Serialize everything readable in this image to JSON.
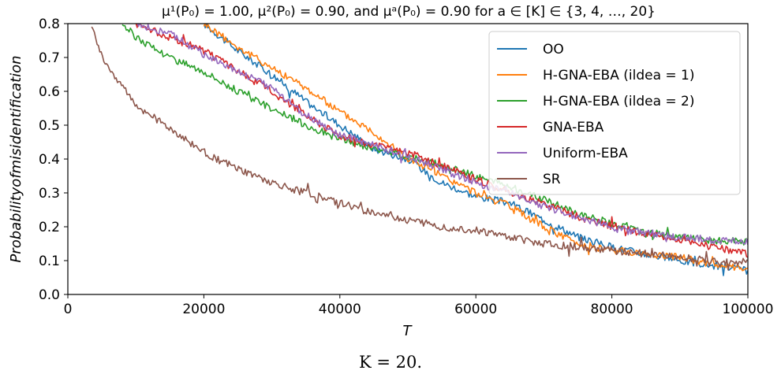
{
  "chart_data": {
    "type": "line",
    "title": "μ¹(P₀) = 1.00, μ²(P₀) = 0.90, and μᵃ(P₀) = 0.90 for a ∈ [K] ∈ {3, 4, …, 20}",
    "xlabel": "T",
    "ylabel": "Probabilityofmisidentification",
    "xlim": [
      0,
      100000
    ],
    "ylim": [
      0,
      0.8
    ],
    "xticks": [
      0,
      20000,
      40000,
      60000,
      80000,
      100000
    ],
    "yticks": [
      0.0,
      0.1,
      0.2,
      0.3,
      0.4,
      0.5,
      0.6,
      0.7,
      0.8
    ],
    "grid": false,
    "legend_position": "top-right",
    "series": [
      {
        "name": "OO",
        "color": "#1f77b4",
        "x": [
          20000,
          25000,
          30000,
          35000,
          40000,
          45000,
          50000,
          55000,
          60000,
          65000,
          70000,
          75000,
          80000,
          85000,
          90000,
          95000,
          100000
        ],
        "y": [
          0.8,
          0.72,
          0.65,
          0.57,
          0.5,
          0.43,
          0.4,
          0.33,
          0.29,
          0.27,
          0.22,
          0.17,
          0.14,
          0.12,
          0.1,
          0.085,
          0.07
        ]
      },
      {
        "name": "H-GNA-EBA (ildea = 1)",
        "color": "#ff7f0e",
        "x": [
          20000,
          25000,
          30000,
          35000,
          40000,
          45000,
          50000,
          55000,
          60000,
          65000,
          70000,
          75000,
          80000,
          85000,
          90000,
          95000,
          100000
        ],
        "y": [
          0.8,
          0.73,
          0.67,
          0.61,
          0.54,
          0.48,
          0.4,
          0.35,
          0.3,
          0.26,
          0.2,
          0.15,
          0.13,
          0.12,
          0.11,
          0.09,
          0.07
        ]
      },
      {
        "name": "H-GNA-EBA (ildea = 2)",
        "color": "#2ca02c",
        "x": [
          8000,
          10000,
          15000,
          20000,
          25000,
          30000,
          35000,
          40000,
          45000,
          50000,
          55000,
          60000,
          65000,
          70000,
          75000,
          80000,
          85000,
          90000,
          95000,
          100000
        ],
        "y": [
          0.8,
          0.76,
          0.7,
          0.66,
          0.6,
          0.55,
          0.5,
          0.46,
          0.43,
          0.41,
          0.38,
          0.35,
          0.32,
          0.28,
          0.24,
          0.21,
          0.18,
          0.17,
          0.16,
          0.155
        ]
      },
      {
        "name": "GNA-EBA",
        "color": "#d62728",
        "x": [
          10000,
          15000,
          20000,
          25000,
          30000,
          35000,
          40000,
          45000,
          50000,
          55000,
          60000,
          65000,
          70000,
          75000,
          80000,
          85000,
          90000,
          95000,
          100000
        ],
        "y": [
          0.8,
          0.76,
          0.72,
          0.66,
          0.6,
          0.53,
          0.47,
          0.44,
          0.42,
          0.38,
          0.34,
          0.3,
          0.27,
          0.23,
          0.2,
          0.18,
          0.16,
          0.14,
          0.12
        ]
      },
      {
        "name": "Uniform-EBA",
        "color": "#9467bd",
        "x": [
          10000,
          15000,
          20000,
          25000,
          30000,
          35000,
          40000,
          45000,
          50000,
          55000,
          60000,
          65000,
          70000,
          75000,
          80000,
          85000,
          90000,
          95000,
          100000
        ],
        "y": [
          0.8,
          0.77,
          0.71,
          0.66,
          0.61,
          0.53,
          0.47,
          0.44,
          0.41,
          0.37,
          0.33,
          0.3,
          0.26,
          0.23,
          0.2,
          0.18,
          0.17,
          0.16,
          0.155
        ]
      },
      {
        "name": "SR",
        "color": "#8c564b",
        "x": [
          3500,
          5000,
          7500,
          10000,
          15000,
          20000,
          25000,
          30000,
          35000,
          40000,
          45000,
          50000,
          55000,
          60000,
          65000,
          70000,
          75000,
          80000,
          85000,
          90000,
          95000,
          100000
        ],
        "y": [
          0.8,
          0.7,
          0.63,
          0.56,
          0.49,
          0.42,
          0.37,
          0.33,
          0.3,
          0.27,
          0.24,
          0.22,
          0.2,
          0.19,
          0.17,
          0.15,
          0.14,
          0.13,
          0.12,
          0.11,
          0.1,
          0.095
        ]
      }
    ]
  },
  "caption": "K = 20."
}
